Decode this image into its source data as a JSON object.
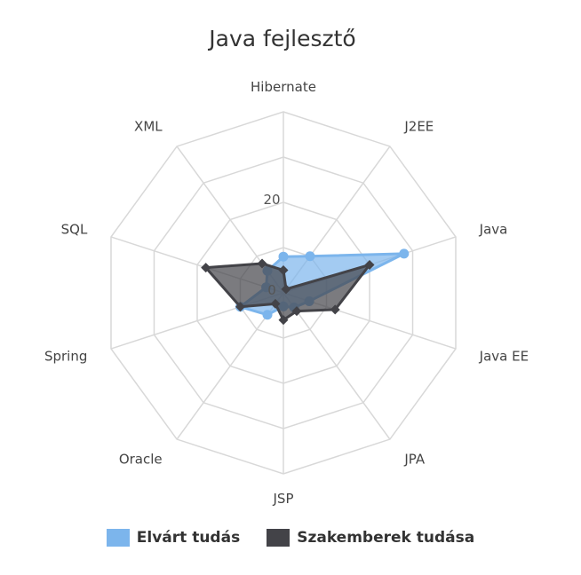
{
  "chart_data": {
    "type": "radar",
    "title": "Java fejlesztő",
    "categories": [
      "Hibernate",
      "J2EE",
      "Java",
      "Java EE",
      "JPA",
      "JSP",
      "Oracle",
      "Spring",
      "SQL",
      "XML"
    ],
    "rlim": [
      0,
      40
    ],
    "ticks": [
      {
        "value": 0,
        "label": "0"
      },
      {
        "value": 20,
        "label": "20"
      }
    ],
    "grid": true,
    "legend_position": "bottom",
    "series": [
      {
        "name": "Elvárt tudás",
        "color": "#7cb5ec",
        "marker": "circle",
        "values": [
          8,
          10,
          28,
          6,
          4,
          3,
          6,
          10,
          4,
          6
        ]
      },
      {
        "name": "Szakemberek tudása",
        "color": "#434348",
        "marker": "diamond",
        "values": [
          5,
          1,
          20,
          12,
          5,
          6,
          3,
          10,
          18,
          8
        ]
      }
    ]
  }
}
